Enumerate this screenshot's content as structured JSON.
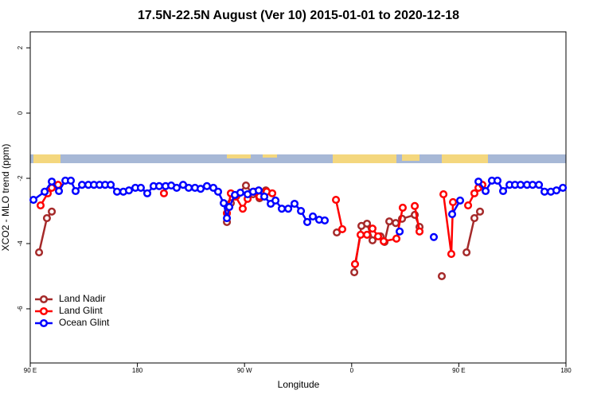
{
  "chart_data": {
    "type": "line",
    "title": "17.5N-22.5N August (Ver 10)   2015-01-01 to 2020-12-18",
    "x_label": "Longitude",
    "y_label": "XCO2 - MLO trend (ppm)",
    "xlim": [
      90,
      540
    ],
    "ylim": [
      -7.66,
      2.49
    ],
    "xticks": [
      {
        "value": 90,
        "label": "90 E"
      },
      180,
      {
        "value": 270,
        "label": "90 W"
      },
      {
        "value": 360,
        "label": "0"
      },
      {
        "value": 450,
        "label": "90 E"
      },
      {
        "value": 540,
        "label": "180"
      }
    ],
    "yticks": [
      2,
      0,
      -2,
      -4,
      -6
    ],
    "grid": false,
    "legend": "bottom-left",
    "series": [
      {
        "name": "Land Nadir",
        "color": "#a52a2a",
        "x": [
          97.4,
          104.0,
          108.1,
          null,
          255.2,
          258.5,
          263.2,
          271.2,
          277.2,
          282.6,
          287.9,
          null,
          347.5,
          null,
          362.2,
          368.2,
          372.9,
          377.5,
          384.2,
          387.6,
          391.6,
          397.0,
          402.3,
          413.0,
          417.0,
          null,
          435.7,
          null,
          456.5,
          463.1,
          467.8
        ],
        "values": [
          -4.27,
          -3.22,
          -3.02,
          null,
          -3.34,
          -2.76,
          -2.54,
          -2.22,
          -2.49,
          -2.61,
          -2.37,
          null,
          -3.66,
          null,
          -4.88,
          -3.46,
          -3.39,
          -3.9,
          -3.78,
          -3.95,
          -3.32,
          -3.37,
          -3.24,
          -3.12,
          -3.49,
          null,
          -5.0,
          null,
          -4.27,
          -3.22,
          -3.02
        ]
      },
      {
        "name": "Land Glint",
        "color": "#ff0000",
        "x": [
          98.7,
          104.7,
          108.1,
          113.4,
          null,
          202.3,
          null,
          255.2,
          258.5,
          262.5,
          268.5,
          272.6,
          277.9,
          282.6,
          288.6,
          293.3,
          null,
          346.8,
          352.1,
          null,
          362.8,
          367.5,
          372.9,
          377.5,
          382.2,
          386.9,
          397.6,
          402.9,
          null,
          413.0,
          417.0,
          null,
          437.1,
          443.7,
          445.1,
          null,
          457.8,
          463.1,
          466.5,
          469.8
        ],
        "values": [
          -2.83,
          -2.46,
          -2.29,
          -2.2,
          null,
          -2.46,
          null,
          -3.07,
          -2.46,
          -2.56,
          -2.93,
          -2.63,
          -2.41,
          -2.56,
          -2.41,
          -2.46,
          null,
          -2.66,
          -3.56,
          null,
          -4.63,
          -3.73,
          -3.73,
          -3.54,
          -3.78,
          -3.93,
          -3.85,
          -2.9,
          null,
          -2.85,
          -3.63,
          null,
          -2.49,
          -4.32,
          -2.73,
          null,
          -2.83,
          -2.46,
          -2.29,
          -2.2
        ]
      },
      {
        "name": "Ocean Glint",
        "color": "#0000ff",
        "x": [
          92.7,
          102.1,
          108.1,
          114.1,
          119.5,
          124.1,
          128.1,
          133.5,
          138.8,
          143.5,
          148.2,
          152.9,
          157.6,
          162.9,
          168.2,
          172.9,
          178.3,
          182.9,
          188.3,
          193.6,
          198.3,
          203.7,
          208.4,
          213.0,
          218.4,
          223.1,
          228.4,
          233.1,
          238.4,
          243.8,
          247.8,
          252.5,
          255.2,
          257.2,
          261.9,
          266.5,
          272.6,
          277.2,
          281.9,
          286.6,
          292.0,
          296.0,
          301.3,
          306.7,
          312.0,
          317.4,
          322.7,
          327.4,
          332.7,
          337.4,
          null,
          400.3,
          null,
          429.0,
          null,
          444.4,
          451.1,
          null,
          466.5,
          472.5,
          477.8,
          482.5,
          487.2,
          492.6,
          497.2,
          501.9,
          507.3,
          512.0,
          517.3,
          522.0,
          527.3,
          532.0,
          537.4
        ],
        "values": [
          -2.66,
          -2.41,
          -2.1,
          -2.39,
          -2.07,
          -2.07,
          -2.39,
          -2.2,
          -2.2,
          -2.2,
          -2.2,
          -2.2,
          -2.2,
          -2.41,
          -2.41,
          -2.37,
          -2.29,
          -2.29,
          -2.46,
          -2.24,
          -2.24,
          -2.24,
          -2.22,
          -2.29,
          -2.2,
          -2.29,
          -2.29,
          -2.32,
          -2.24,
          -2.29,
          -2.41,
          -2.76,
          -3.22,
          -2.88,
          -2.51,
          -2.44,
          -2.49,
          -2.41,
          -2.37,
          -2.56,
          -2.78,
          -2.68,
          -2.93,
          -2.93,
          -2.78,
          -3.0,
          -3.34,
          -3.17,
          -3.27,
          -3.29,
          null,
          -3.63,
          null,
          -3.8,
          null,
          -3.1,
          -2.68,
          null,
          -2.1,
          -2.39,
          -2.07,
          -2.07,
          -2.39,
          -2.2,
          -2.2,
          -2.2,
          -2.2,
          -2.2,
          -2.2,
          -2.41,
          -2.41,
          -2.37,
          -2.29
        ]
      }
    ]
  }
}
